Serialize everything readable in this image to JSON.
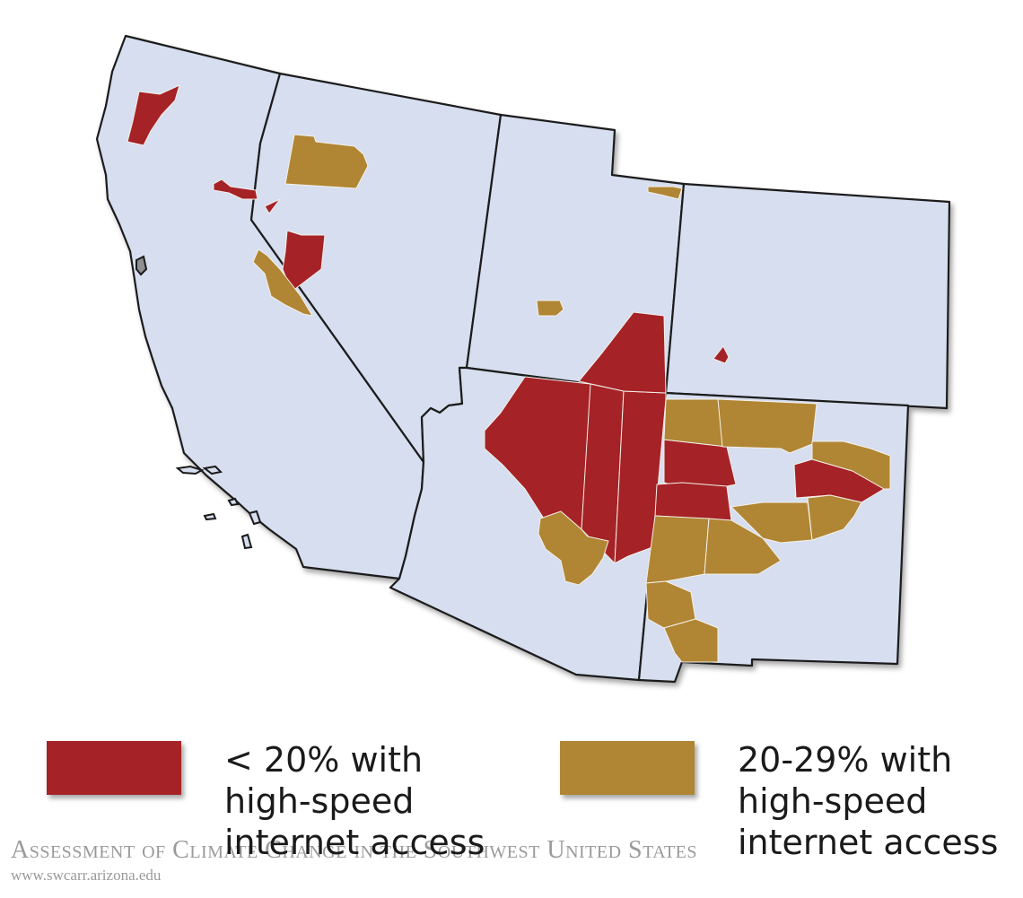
{
  "colors": {
    "state_fill": "#d6deef",
    "low_access": "#a52226",
    "mid_access": "#b08534",
    "state_border": "#1a1a1a",
    "footer_text": "#9a9a9a"
  },
  "states": [
    "California",
    "Nevada",
    "Utah",
    "Colorado",
    "Arizona",
    "New Mexico"
  ],
  "legend": [
    {
      "key": "low",
      "color": "#a52226",
      "lines": [
        "< 20% with",
        "high-speed",
        "internet access"
      ]
    },
    {
      "key": "mid",
      "color": "#b08534",
      "lines": [
        "20-29% with",
        "high-speed",
        "internet access"
      ]
    }
  ],
  "footer": {
    "title": "Assessment of Climate Change in the Southwest United States",
    "url": "www.swcarr.arizona.edu"
  }
}
